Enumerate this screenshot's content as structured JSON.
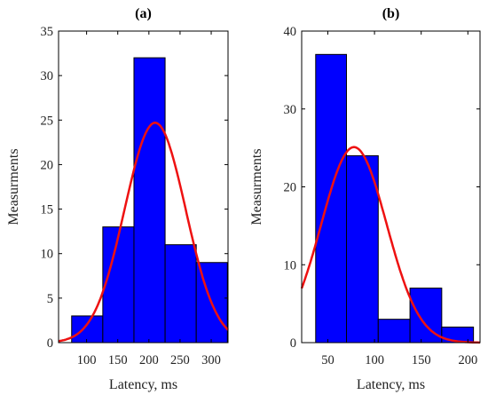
{
  "chart_data": [
    {
      "type": "bar",
      "title": "(a)",
      "xlabel": "Latency, ms",
      "ylabel": "Measurments",
      "xlim": [
        55,
        327
      ],
      "ylim": [
        0,
        35
      ],
      "xticks": [
        100,
        150,
        200,
        250,
        300
      ],
      "yticks": [
        0,
        5,
        10,
        15,
        20,
        25,
        30,
        35
      ],
      "bins": [
        {
          "x0": 76,
          "x1": 126,
          "value": 3
        },
        {
          "x0": 126,
          "x1": 176,
          "value": 13
        },
        {
          "x0": 176,
          "x1": 226,
          "value": 32
        },
        {
          "x0": 226,
          "x1": 276,
          "value": 11
        },
        {
          "x0": 276,
          "x1": 326,
          "value": 9
        }
      ],
      "fit": {
        "type": "normal",
        "mean": 210,
        "sd": 49,
        "peak": 24.7
      }
    },
    {
      "type": "bar",
      "title": "(b)",
      "xlabel": "Latency, ms",
      "ylabel": "Measurments",
      "xlim": [
        22,
        213
      ],
      "ylim": [
        0,
        40
      ],
      "xticks": [
        50,
        100,
        150,
        200
      ],
      "yticks": [
        0,
        10,
        20,
        30,
        40
      ],
      "bins": [
        {
          "x0": 37,
          "x1": 70,
          "value": 37
        },
        {
          "x0": 70,
          "x1": 104,
          "value": 24
        },
        {
          "x0": 104,
          "x1": 138,
          "value": 3
        },
        {
          "x0": 138,
          "x1": 172,
          "value": 7
        },
        {
          "x0": 172,
          "x1": 206,
          "value": 2
        }
      ],
      "fit": {
        "type": "normal",
        "mean": 78,
        "sd": 35,
        "peak": 25.1
      }
    }
  ]
}
